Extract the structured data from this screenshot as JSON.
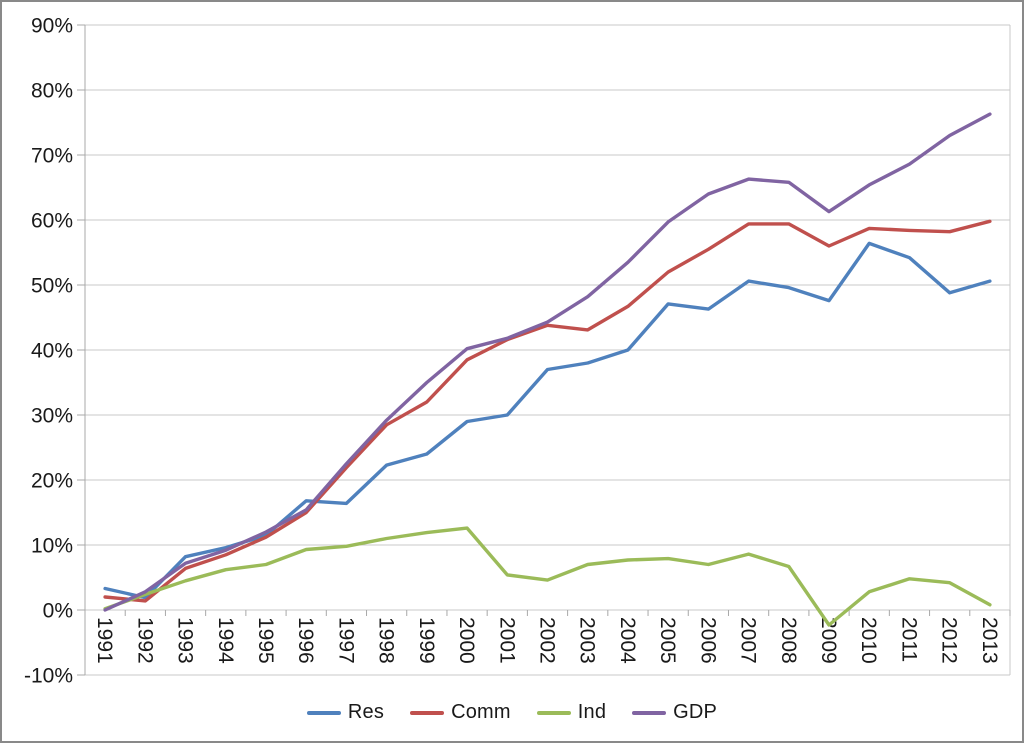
{
  "chart_data": {
    "type": "line",
    "title": "",
    "xlabel": "",
    "ylabel": "",
    "ylim": [
      -10,
      90
    ],
    "y_step": 10,
    "grid": true,
    "y_tick_labels": [
      "90%",
      "80%",
      "70%",
      "60%",
      "50%",
      "40%",
      "30%",
      "20%",
      "10%",
      "0%",
      "-10%"
    ],
    "x_labels": [
      "1991",
      "1992",
      "1993",
      "1994",
      "1995",
      "1996",
      "1997",
      "1998",
      "1999",
      "2000",
      "2001",
      "2002",
      "2003",
      "2004",
      "2005",
      "2006",
      "2007",
      "2008",
      "2009",
      "2010",
      "2011",
      "2012",
      "2013"
    ],
    "series": [
      {
        "name": "Res",
        "color": "#4F81BD",
        "values": [
          3.3,
          1.9,
          8.2,
          9.6,
          11.5,
          16.8,
          16.4,
          22.3,
          24.0,
          29.0,
          30.0,
          37.0,
          38.0,
          40.0,
          47.1,
          46.3,
          50.6,
          49.6,
          47.6,
          56.4,
          54.2,
          48.8,
          50.6
        ]
      },
      {
        "name": "Comm",
        "color": "#C0504D",
        "values": [
          2.0,
          1.4,
          6.4,
          8.5,
          11.2,
          15.0,
          21.9,
          28.5,
          32.0,
          38.5,
          41.6,
          43.8,
          43.1,
          46.7,
          52.0,
          55.5,
          59.4,
          59.4,
          56.0,
          58.7,
          58.4,
          58.2,
          59.8
        ]
      },
      {
        "name": "Ind",
        "color": "#9BBB59",
        "values": [
          0.2,
          2.4,
          4.5,
          6.2,
          7.0,
          9.3,
          9.8,
          11.0,
          11.9,
          12.6,
          5.4,
          4.6,
          7.0,
          7.7,
          7.9,
          7.0,
          8.6,
          6.7,
          -2.3,
          2.8,
          4.8,
          4.2,
          0.8
        ]
      },
      {
        "name": "GDP",
        "color": "#8064A2",
        "values": [
          0.0,
          2.8,
          7.2,
          9.2,
          12.0,
          15.4,
          22.5,
          29.2,
          35.0,
          40.2,
          41.8,
          44.3,
          48.2,
          53.5,
          59.7,
          64.0,
          66.3,
          65.8,
          61.3,
          65.4,
          68.6,
          73.0,
          76.3
        ]
      }
    ],
    "legend": {
      "position": "bottom",
      "entries": [
        "Res",
        "Comm",
        "Ind",
        "GDP"
      ]
    },
    "colors": {
      "gridline": "#C8C8C8",
      "axis_line": "#A8A8A8",
      "tick": "#A8A8A8",
      "text": "#1a1a1a",
      "background": "#FFFFFF",
      "frame_border": "#898989"
    }
  }
}
